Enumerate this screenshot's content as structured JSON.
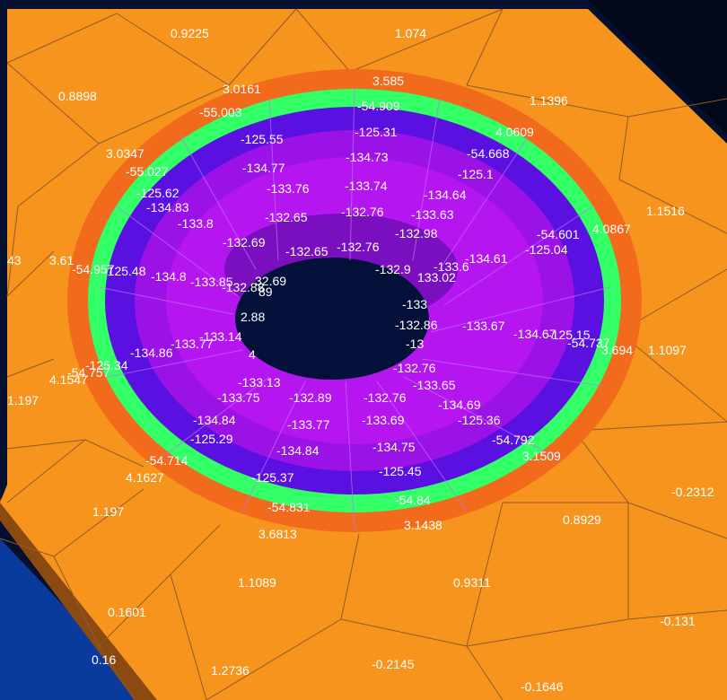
{
  "colors": {
    "background_dark": "#04102e",
    "background_blue": "#0a3a9c",
    "plate_face": "#f7941d",
    "plate_edge": "#8a4a12",
    "band_orange_dark": "#f26b1d",
    "band_green": "#33ff66",
    "band_indigo": "#5a10e0",
    "band_purple": "#9b12e6",
    "band_magenta": "#b515ef",
    "hole": "#03113a",
    "mesh_line": "#8f5a2a",
    "label": "#ffffff"
  },
  "labels": [
    {
      "text": "0.9225"
    },
    {
      "text": "1.074"
    },
    {
      "text": "0.8898"
    },
    {
      "text": "3.0161"
    },
    {
      "text": "3.585"
    },
    {
      "text": "1.1396"
    },
    {
      "text": "-55.003"
    },
    {
      "text": "-54.909"
    },
    {
      "text": "4.0609"
    },
    {
      "text": "-125.55"
    },
    {
      "text": "-125.31"
    },
    {
      "text": "3.0347"
    },
    {
      "text": "-134.77"
    },
    {
      "text": "-134.73"
    },
    {
      "text": "-54.668"
    },
    {
      "text": "-55.027"
    },
    {
      "text": "-125.1"
    },
    {
      "text": "-125.62"
    },
    {
      "text": "-133.76"
    },
    {
      "text": "-133.74"
    },
    {
      "text": "-134.64"
    },
    {
      "text": "-134.83"
    },
    {
      "text": "1.1516"
    },
    {
      "text": "-133.8"
    },
    {
      "text": "-132.65"
    },
    {
      "text": "-132.76"
    },
    {
      "text": "-133.63"
    },
    {
      "text": "4.0867"
    },
    {
      "text": "-54.601"
    },
    {
      "text": "-132.98"
    },
    {
      "text": "-132.69"
    },
    {
      "text": "-132.65"
    },
    {
      "text": "-132.76"
    },
    {
      "text": "-125.04"
    },
    {
      "text": "43"
    },
    {
      "text": "3.61"
    },
    {
      "text": "-54.957"
    },
    {
      "text": "-125.48"
    },
    {
      "text": "-134.8"
    },
    {
      "text": "-134.61"
    },
    {
      "text": "-133.6"
    },
    {
      "text": "-133.85"
    },
    {
      "text": "-132.88"
    },
    {
      "text": "32.69"
    },
    {
      "text": "-132.9"
    },
    {
      "text": "133.02"
    },
    {
      "text": "-133"
    },
    {
      "text": "89"
    },
    {
      "text": "2.88"
    },
    {
      "text": "-132.86"
    },
    {
      "text": "-133.67"
    },
    {
      "text": "-134.67"
    },
    {
      "text": "-125.15"
    },
    {
      "text": "-54.737"
    },
    {
      "text": "3.694"
    },
    {
      "text": "1.1097"
    },
    {
      "text": "-133.14"
    },
    {
      "text": "-133.77"
    },
    {
      "text": "-134.86"
    },
    {
      "text": "-125.34"
    },
    {
      "text": "4.1547"
    },
    {
      "text": "-54.757"
    },
    {
      "text": "1.197"
    },
    {
      "text": "4"
    },
    {
      "text": "-13"
    },
    {
      "text": "-132.76"
    },
    {
      "text": "-133.13"
    },
    {
      "text": "-133.65"
    },
    {
      "text": "-133.75"
    },
    {
      "text": "-132.89"
    },
    {
      "text": "-132.76"
    },
    {
      "text": "-134.69"
    },
    {
      "text": "-134.84"
    },
    {
      "text": "-133.77"
    },
    {
      "text": "-133.69"
    },
    {
      "text": "-125.36"
    },
    {
      "text": "-125.29"
    },
    {
      "text": "-54.792"
    },
    {
      "text": "-54.714"
    },
    {
      "text": "-134.84"
    },
    {
      "text": "-134.75"
    },
    {
      "text": "3.1509"
    },
    {
      "text": "-125.37"
    },
    {
      "text": "-125.45"
    },
    {
      "text": "4.1627"
    },
    {
      "text": "-0.2312"
    },
    {
      "text": "-54.831"
    },
    {
      "text": "-54.84"
    },
    {
      "text": "1.197"
    },
    {
      "text": "0.8929"
    },
    {
      "text": "3.6813"
    },
    {
      "text": "3.1438"
    },
    {
      "text": "1.1089"
    },
    {
      "text": "0.9311"
    },
    {
      "text": "0.1601"
    },
    {
      "text": "-0.131"
    },
    {
      "text": "0.16"
    },
    {
      "text": "1.2736"
    },
    {
      "text": "-0.2145"
    },
    {
      "text": "-0.1646"
    }
  ]
}
